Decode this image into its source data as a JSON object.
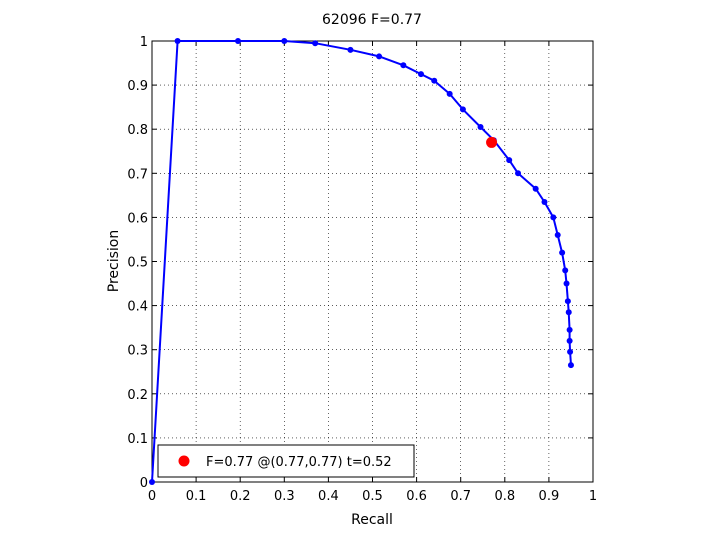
{
  "chart_data": {
    "type": "line",
    "title": "62096 F=0.77",
    "xlabel": "Recall",
    "ylabel": "Precision",
    "xlim": [
      0,
      1
    ],
    "ylim": [
      0,
      1
    ],
    "xticks": [
      "0",
      "0.1",
      "0.2",
      "0.3",
      "0.4",
      "0.5",
      "0.6",
      "0.7",
      "0.8",
      "0.9",
      "1"
    ],
    "yticks": [
      "0",
      "0.1",
      "0.2",
      "0.3",
      "0.4",
      "0.5",
      "0.6",
      "0.7",
      "0.8",
      "0.9",
      "1"
    ],
    "grid": true,
    "legend_position": "bottom-left",
    "series": [
      {
        "color": "#0000ff",
        "points": [
          [
            0.95,
            0.265
          ],
          [
            0.948,
            0.295
          ],
          [
            0.947,
            0.32
          ],
          [
            0.947,
            0.345
          ],
          [
            0.945,
            0.385
          ],
          [
            0.943,
            0.41
          ],
          [
            0.94,
            0.45
          ],
          [
            0.937,
            0.48
          ],
          [
            0.93,
            0.52
          ],
          [
            0.92,
            0.56
          ],
          [
            0.91,
            0.6
          ],
          [
            0.89,
            0.635
          ],
          [
            0.87,
            0.665
          ],
          [
            0.83,
            0.7
          ],
          [
            0.81,
            0.73
          ],
          [
            0.775,
            0.775
          ],
          [
            0.745,
            0.805
          ],
          [
            0.705,
            0.845
          ],
          [
            0.675,
            0.88
          ],
          [
            0.64,
            0.91
          ],
          [
            0.61,
            0.925
          ],
          [
            0.57,
            0.945
          ],
          [
            0.515,
            0.965
          ],
          [
            0.45,
            0.98
          ],
          [
            0.37,
            0.995
          ],
          [
            0.3,
            1.0
          ],
          [
            0.195,
            1.0
          ],
          [
            0.058,
            1.0
          ],
          [
            0.0,
            0.0
          ]
        ]
      }
    ],
    "best_point": {
      "x": 0.77,
      "y": 0.77,
      "color": "#ff0000",
      "legend_label": "F=0.77 @(0.77,0.77) t=0.52"
    }
  }
}
